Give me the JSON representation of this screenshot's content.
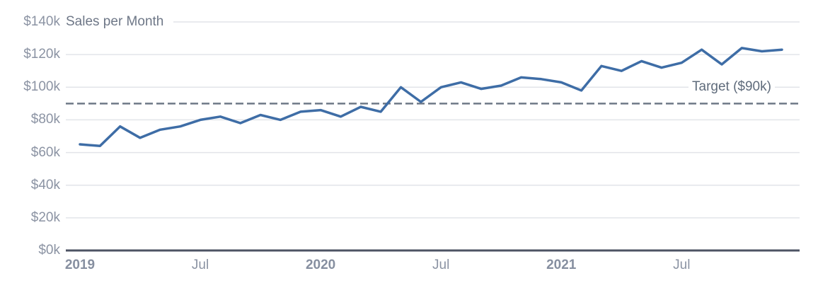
{
  "chart_data": {
    "type": "line",
    "title": "Sales per Month",
    "x": [
      "2019-01",
      "2019-02",
      "2019-03",
      "2019-04",
      "2019-05",
      "2019-06",
      "2019-07",
      "2019-08",
      "2019-09",
      "2019-10",
      "2019-11",
      "2019-12",
      "2020-01",
      "2020-02",
      "2020-03",
      "2020-04",
      "2020-05",
      "2020-06",
      "2020-07",
      "2020-08",
      "2020-09",
      "2020-10",
      "2020-11",
      "2020-12",
      "2021-01",
      "2021-02",
      "2021-03",
      "2021-04",
      "2021-05",
      "2021-06",
      "2021-07",
      "2021-08",
      "2021-09",
      "2021-10",
      "2021-11",
      "2021-12"
    ],
    "series": [
      {
        "name": "Sales",
        "unit": "$k",
        "color": "#3e6da6",
        "values": [
          65,
          64,
          76,
          69,
          74,
          76,
          80,
          82,
          78,
          83,
          80,
          85,
          86,
          82,
          88,
          85,
          100,
          91,
          100,
          103,
          99,
          101,
          106,
          105,
          103,
          98,
          113,
          110,
          116,
          112,
          115,
          123,
          114,
          124,
          122,
          123
        ]
      }
    ],
    "target": {
      "label": "Target ($90k)",
      "value": 90,
      "color": "#6f7987",
      "style": "dashed"
    },
    "y_axis": {
      "min": 0,
      "max": 140,
      "tick_step": 20,
      "tick_labels": [
        "$0k",
        "$20k",
        "$40k",
        "$60k",
        "$80k",
        "$100k",
        "$120k",
        "$140k"
      ]
    },
    "x_axis": {
      "ticks": [
        {
          "label": "2019",
          "month_index": 0,
          "bold": true
        },
        {
          "label": "Jul",
          "month_index": 6,
          "bold": false
        },
        {
          "label": "2020",
          "month_index": 12,
          "bold": true
        },
        {
          "label": "Jul",
          "month_index": 18,
          "bold": false
        },
        {
          "label": "2021",
          "month_index": 24,
          "bold": true
        },
        {
          "label": "Jul",
          "month_index": 30,
          "bold": false
        }
      ]
    },
    "grid": true,
    "legend_position": "none",
    "colors": {
      "grid_color": "#e2e4e9",
      "baseline_color": "#4d5363",
      "tick_label_color": "#8b93a3",
      "title_color": "#6e7787",
      "target_text_color": "#5f6b7b"
    }
  }
}
